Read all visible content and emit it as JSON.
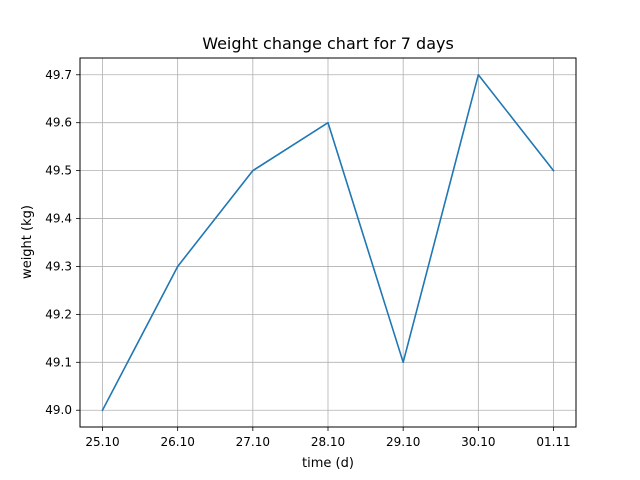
{
  "chart_data": {
    "type": "line",
    "title": "Weight change chart for 7 days",
    "xlabel": "time (d)",
    "ylabel": "weight (kg)",
    "categories": [
      "25.10",
      "26.10",
      "27.10",
      "28.10",
      "29.10",
      "30.10",
      "01.11"
    ],
    "series": [
      {
        "values": [
          49.0,
          49.3,
          49.5,
          49.6,
          49.1,
          49.7,
          49.5
        ],
        "color": "#1f77b4"
      }
    ],
    "yticks": [
      "49.0",
      "49.1",
      "49.2",
      "49.3",
      "49.4",
      "49.5",
      "49.6",
      "49.7"
    ],
    "ylim": [
      48.965,
      49.735
    ],
    "grid": true,
    "colors": {
      "grid": "#b0b0b0",
      "axes": "#000000",
      "line": "#1f77b4"
    }
  }
}
